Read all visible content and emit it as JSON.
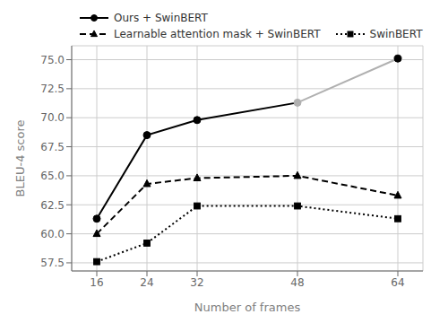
{
  "chart_data": {
    "type": "line",
    "xlabel": "Number of frames",
    "ylabel": "BLEU-4 score",
    "x": [
      16,
      24,
      32,
      48,
      64
    ],
    "series": [
      {
        "name": "Ours + SwinBERT",
        "color": "#000000",
        "colors": [
          "#000000",
          "#000000",
          "#000000",
          "#b0b0b0",
          "#000000"
        ],
        "marker": "circle",
        "line_style": "solid",
        "values": [
          61.3,
          68.5,
          69.8,
          71.3,
          75.1
        ]
      },
      {
        "name": "Learnable attention mask + SwinBERT",
        "color": "#000000",
        "marker": "triangle",
        "line_style": "dashed",
        "values": [
          60.0,
          64.3,
          64.8,
          65.0,
          63.3
        ]
      },
      {
        "name": "SwinBERT",
        "color": "#000000",
        "marker": "square",
        "line_style": "dotted",
        "values": [
          57.6,
          59.2,
          62.4,
          62.4,
          61.3
        ]
      }
    ],
    "xlim": [
      12,
      68
    ],
    "xticks": [
      16,
      24,
      32,
      48,
      64
    ],
    "ylim": [
      56.8,
      76.2
    ],
    "yticks": [
      {
        "value": 57.5,
        "label": "57.5"
      },
      {
        "value": 60.0,
        "label": "60.0"
      },
      {
        "value": 62.5,
        "label": "62.5"
      },
      {
        "value": 65.0,
        "label": "65.0"
      },
      {
        "value": 67.5,
        "label": "67.5"
      },
      {
        "value": 70.0,
        "label": "70.0"
      },
      {
        "value": 72.5,
        "label": "72.5"
      },
      {
        "value": 75.0,
        "label": "75.0"
      }
    ],
    "grid": true,
    "legend": "upper left"
  }
}
